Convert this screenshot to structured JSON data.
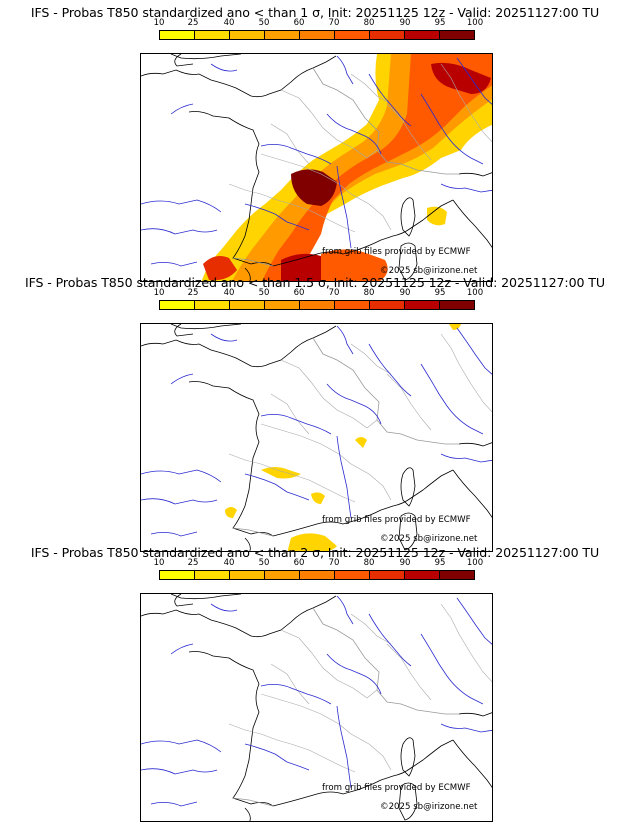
{
  "colorbar": {
    "ticks": [
      "10",
      "25",
      "40",
      "50",
      "60",
      "70",
      "80",
      "90",
      "95",
      "100"
    ],
    "colors": [
      "#ffff00",
      "#ffdf00",
      "#ffbf00",
      "#ffa000",
      "#ff8000",
      "#ff5a00",
      "#e62e00",
      "#b80000",
      "#800000"
    ]
  },
  "panels": [
    {
      "title": "IFS - Probas T850  standardized ano < than 1 σ, Init: 20251125 12z - Valid: 20251127:00 TU",
      "source": "from grib files provided by ECMWF",
      "copyright": "©2025 sb@irizone.net"
    },
    {
      "title": "IFS - Probas T850  standardized ano < than 1.5 σ, Init: 20251125 12z - Valid: 20251127:00 TU",
      "source": "from grib files provided by ECMWF",
      "copyright": "©2025 sb@irizone.net"
    },
    {
      "title": "IFS - Probas T850  standardized ano < than 2 σ, Init: 20251125 12z - Valid: 20251127:00 TU",
      "source": "from grib files provided by ECMWF",
      "copyright": "©2025 sb@irizone.net"
    }
  ]
}
